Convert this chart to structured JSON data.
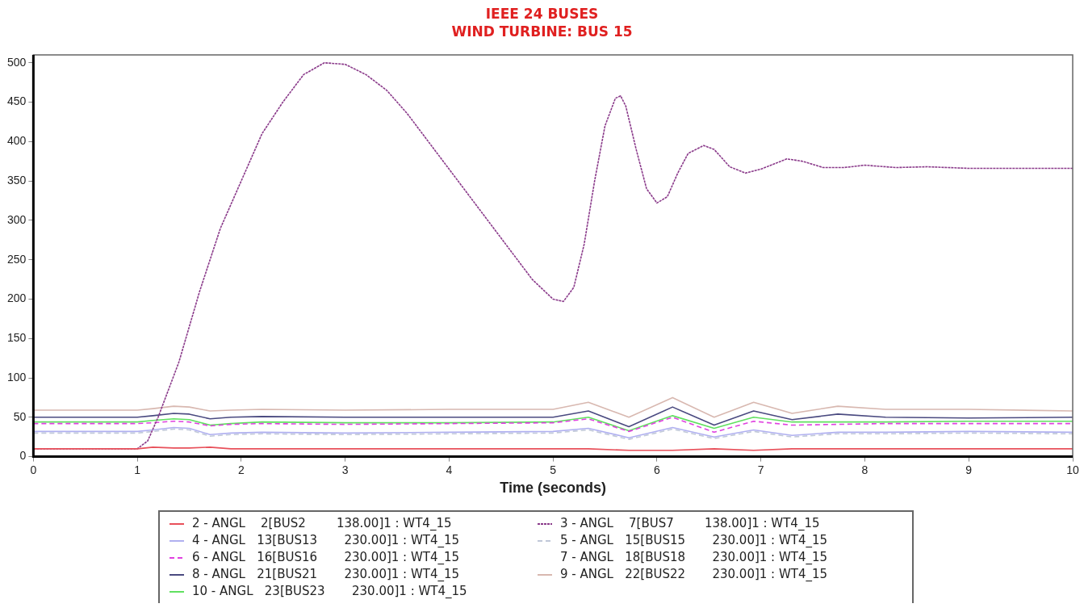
{
  "chart_data": {
    "type": "line",
    "title": "IEEE 24 BUSES",
    "subtitle": "WIND TURBINE: BUS 15",
    "xlabel": "Time (seconds)",
    "xlim": [
      0,
      10
    ],
    "xticks": [
      0,
      1,
      2,
      3,
      4,
      5,
      6,
      7,
      8,
      9,
      10
    ],
    "ylim": [
      0,
      510
    ],
    "yticks": [
      0,
      50,
      100,
      150,
      200,
      250,
      300,
      350,
      400,
      450,
      500
    ],
    "grid": false,
    "legend": "bottom",
    "marker": "none",
    "x": [
      0,
      1,
      1.15,
      1.35,
      1.5,
      1.7,
      1.9,
      2.2,
      3,
      4,
      5,
      5.34,
      5.73,
      6.15,
      6.55,
      6.93,
      7.3,
      7.74,
      8.2,
      9,
      10
    ],
    "series": [
      {
        "name": "2 - ANGL    2[BUS2        138.00]1 : WT4_15",
        "color": "#e8505a",
        "line_style": "solid",
        "values": [
          10,
          10,
          12,
          11,
          11,
          12,
          10,
          10,
          10,
          10,
          10,
          10,
          8,
          8,
          10,
          8,
          10,
          10,
          10,
          10,
          10
        ]
      },
      {
        "name": "3 - ANGL    7[BUS7        138.00]1 : WT4_15",
        "color": "#8a3a8a",
        "line_style": "dotted",
        "x": [
          0,
          1,
          1.1,
          1.2,
          1.4,
          1.6,
          1.8,
          2,
          2.2,
          2.4,
          2.6,
          2.8,
          3,
          3.2,
          3.4,
          3.6,
          3.8,
          4,
          4.2,
          4.4,
          4.6,
          4.8,
          5,
          5.1,
          5.2,
          5.3,
          5.4,
          5.5,
          5.6,
          5.65,
          5.7,
          5.8,
          5.9,
          6,
          6.1,
          6.2,
          6.3,
          6.45,
          6.55,
          6.7,
          6.85,
          7,
          7.25,
          7.4,
          7.6,
          7.8,
          8,
          8.3,
          8.6,
          9,
          10
        ],
        "values": [
          10,
          10,
          20,
          50,
          120,
          210,
          290,
          350,
          410,
          450,
          485,
          500,
          498,
          485,
          465,
          435,
          400,
          365,
          330,
          295,
          260,
          225,
          200,
          197,
          215,
          270,
          350,
          420,
          455,
          458,
          445,
          390,
          340,
          322,
          330,
          360,
          385,
          395,
          390,
          368,
          360,
          365,
          378,
          375,
          367,
          367,
          370,
          367,
          368,
          366,
          366
        ]
      },
      {
        "name": "4 - ANGL   13[BUS13       230.00]1 : WT4_15",
        "color": "#b0b0f0",
        "line_style": "solid",
        "values": [
          32,
          32,
          34,
          37,
          36,
          28,
          30,
          31,
          30,
          31,
          32,
          36,
          24,
          37,
          25,
          34,
          27,
          31,
          31,
          32,
          31
        ]
      },
      {
        "name": "5 - ANGL   15[BUS15       230.00]1 : WT4_15",
        "color": "#c0c8d8",
        "line_style": "dashed",
        "values": [
          30,
          30,
          32,
          35,
          34,
          26,
          28,
          29,
          28,
          29,
          30,
          34,
          22,
          35,
          23,
          32,
          25,
          29,
          29,
          30,
          29
        ]
      },
      {
        "name": "6 - ANGL   16[BUS16       230.00]1 : WT4_15",
        "color": "#e040e0",
        "line_style": "dashed",
        "values": [
          42,
          42,
          43,
          45,
          44,
          39,
          41,
          42,
          41,
          42,
          43,
          48,
          32,
          50,
          31,
          45,
          40,
          41,
          42,
          42,
          42
        ]
      },
      {
        "name": "7 - ANGL   18[BUS18       230.00]1 : WT4_15",
        "line_style": "solid",
        "values": [
          null,
          null,
          null,
          null,
          null,
          null,
          null,
          null,
          null,
          null,
          null,
          null,
          null,
          null,
          null,
          null,
          null,
          null,
          null,
          null,
          null
        ]
      },
      {
        "name": "8 - ANGL   21[BUS21       230.00]1 : WT4_15",
        "color": "#4a4a80",
        "line_style": "solid",
        "values": [
          50,
          50,
          52,
          55,
          54,
          48,
          50,
          51,
          50,
          50,
          50,
          58,
          38,
          63,
          40,
          58,
          47,
          54,
          50,
          49,
          50
        ]
      },
      {
        "name": "9 - ANGL   22[BUS22       230.00]1 : WT4_15",
        "color": "#d8b8b0",
        "line_style": "solid",
        "values": [
          59,
          59,
          61,
          64,
          63,
          58,
          59,
          60,
          59,
          60,
          60,
          69,
          50,
          75,
          50,
          69,
          55,
          64,
          60,
          60,
          58
        ]
      },
      {
        "name": "10 - ANGL   23[BUS23       230.00]1 : WT4_15",
        "color": "#60e060",
        "line_style": "solid",
        "values": [
          44,
          44,
          46,
          48,
          47,
          40,
          42,
          44,
          43,
          43,
          44,
          50,
          33,
          52,
          36,
          50,
          44,
          44,
          44,
          45,
          45
        ]
      }
    ]
  }
}
